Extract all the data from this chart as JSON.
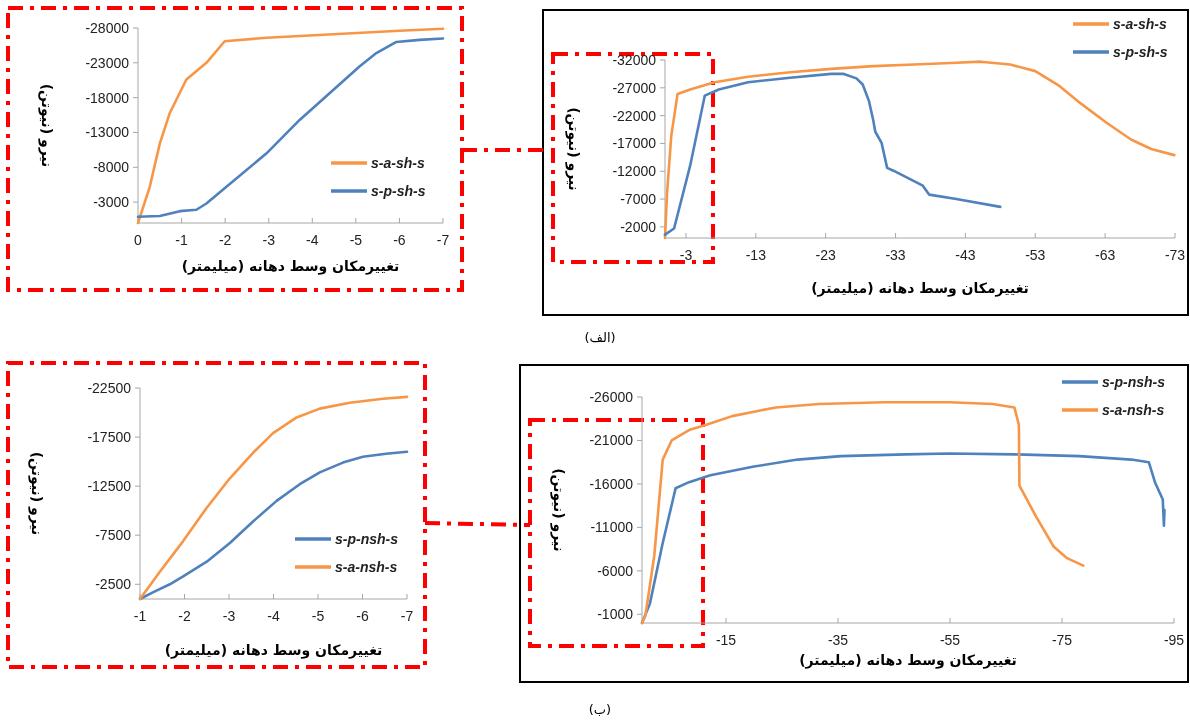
{
  "chart_data": [
    {
      "type": "line",
      "xlabel": "تغییرمکان وسط دهانه (میلیمتر)",
      "ylabel": "نیرو (نیوتن)",
      "xlim": [
        0,
        -7
      ],
      "xticks": [
        0,
        -1,
        -2,
        -3,
        -4,
        -5,
        -6,
        -7
      ],
      "ylim": [
        0,
        -28000
      ],
      "yticks": [
        -3000,
        -8000,
        -13000,
        -18000,
        -23000,
        -28000
      ],
      "legend": "bottom right",
      "marker": "none",
      "line_style": "solid",
      "series": [
        {
          "name": "s-a-sh-s",
          "color": "#f79646",
          "x": [
            0,
            -0.27,
            -0.5,
            -0.73,
            -1.11,
            -1.57,
            -1.99,
            -2.95,
            -4.48,
            -6.0,
            -7
          ],
          "values": [
            0,
            -5200,
            -11400,
            -15800,
            -20600,
            -23000,
            -26100,
            -26600,
            -27100,
            -27600,
            -27900
          ]
        },
        {
          "name": "s-p-sh-s",
          "color": "#4f81bd",
          "x": [
            0,
            -0.5,
            -0.96,
            -1.34,
            -1.57,
            -2.03,
            -2.95,
            -3.71,
            -4.48,
            -5.09,
            -5.47,
            -5.93,
            -6.46,
            -7
          ],
          "values": [
            -900,
            -1000,
            -1700,
            -1900,
            -2800,
            -5200,
            -10000,
            -14800,
            -19100,
            -22500,
            -24400,
            -26000,
            -26300,
            -26500
          ]
        }
      ]
    },
    {
      "type": "line",
      "xlabel": "تغییرمکان وسط دهانه (میلیمتر)",
      "ylabel": "نیرو (نیوتن)",
      "xlim": [
        0,
        -73
      ],
      "xticks": [
        -3,
        -13,
        -23,
        -33,
        -43,
        -53,
        -63,
        -73
      ],
      "ylim": [
        0,
        -32000
      ],
      "yticks": [
        -2000,
        -7000,
        -12000,
        -17000,
        -22000,
        -27000,
        -32000
      ],
      "legend": "top right",
      "marker": "none",
      "line_style": "solid",
      "annotations": [
        "(الف)"
      ],
      "series": [
        {
          "name": "s-a-sh-s",
          "color": "#f79646",
          "x": [
            0,
            -0.3,
            -0.9,
            -1.8,
            -3.6,
            -7.1,
            -11.9,
            -17.9,
            -23.8,
            -29.8,
            -35.7,
            -41.7,
            -45.2,
            -49.4,
            -53,
            -56.5,
            -59.5,
            -63.1,
            -66.7,
            -69.6,
            -72.9
          ],
          "values": [
            0,
            -8200,
            -18400,
            -25900,
            -26700,
            -28000,
            -29000,
            -29800,
            -30400,
            -30900,
            -31200,
            -31500,
            -31700,
            -31200,
            -30000,
            -27300,
            -24200,
            -20800,
            -17700,
            -16000,
            -14900
          ]
        },
        {
          "name": "s-p-sh-s",
          "color": "#4f81bd",
          "x": [
            0,
            -1.3,
            -3.6,
            -5.7,
            -7.7,
            -11.9,
            -17.9,
            -23.8,
            -25.6,
            -27.4,
            -28.3,
            -29.2,
            -29.8,
            -30.1,
            -31,
            -31.8,
            -32.7,
            -36.9,
            -37.8,
            -41.7,
            -48
          ],
          "values": [
            -600,
            -1700,
            -13000,
            -25600,
            -26700,
            -28000,
            -28800,
            -29500,
            -29500,
            -28700,
            -27600,
            -24600,
            -21200,
            -19100,
            -17100,
            -12600,
            -12100,
            -9400,
            -7800,
            -7000,
            -5600
          ]
        }
      ]
    },
    {
      "type": "line",
      "xlabel": "تغییرمکان وسط دهانه (میلیمتر)",
      "ylabel": "نیرو (نیوتن)",
      "xlim": [
        -1,
        -7
      ],
      "xticks": [
        -1,
        -2,
        -3,
        -4,
        -5,
        -6,
        -7
      ],
      "ylim": [
        -1000,
        -22500
      ],
      "yticks": [
        -2500,
        -7500,
        -12500,
        -17500,
        -22500
      ],
      "legend": "bottom right",
      "marker": "none",
      "line_style": "solid",
      "series": [
        {
          "name": "s-p-nsh-s",
          "color": "#4f81bd",
          "x": [
            -1,
            -1.3,
            -1.67,
            -1.97,
            -2.5,
            -3.02,
            -3.54,
            -4.07,
            -4.59,
            -5.04,
            -5.56,
            -6.01,
            -6.53,
            -7
          ],
          "values": [
            -1000,
            -1700,
            -2500,
            -3300,
            -4800,
            -6700,
            -8900,
            -11000,
            -12700,
            -13900,
            -14900,
            -15500,
            -15800,
            -16000
          ]
        },
        {
          "name": "s-a-nsh-s",
          "color": "#f79646",
          "x": [
            -1,
            -1.45,
            -1.97,
            -2.5,
            -3.02,
            -3.54,
            -3.99,
            -4.52,
            -5.04,
            -5.71,
            -6.46,
            -7
          ],
          "values": [
            -1000,
            -3800,
            -6900,
            -10300,
            -13300,
            -15900,
            -17900,
            -19500,
            -20400,
            -21000,
            -21400,
            -21600
          ]
        }
      ]
    },
    {
      "type": "line",
      "xlabel": "تغییرمکان وسط دهانه (میلیمتر)",
      "ylabel": "نیرو (نیوتن)",
      "xlim": [
        0,
        -95
      ],
      "xticks": [
        -15,
        -35,
        -55,
        -75,
        -95
      ],
      "ylim": [
        0,
        -26000
      ],
      "yticks": [
        -1000,
        -6000,
        -11000,
        -16000,
        -21000,
        -26000
      ],
      "legend": "top right",
      "marker": "none",
      "line_style": "solid",
      "annotations": [
        "(ب)"
      ],
      "series": [
        {
          "name": "s-p-nsh-s",
          "color": "#4f81bd",
          "x": [
            0,
            -1.4,
            -3.7,
            -6,
            -8.4,
            -12.2,
            -20,
            -27.8,
            -35.5,
            -47.1,
            -54.9,
            -66.5,
            -78.1,
            -87.4,
            -90.5,
            -91.6,
            -93,
            -93.2,
            -93.3
          ],
          "values": [
            0,
            -2200,
            -9200,
            -15500,
            -16200,
            -17000,
            -18000,
            -18800,
            -19200,
            -19400,
            -19500,
            -19400,
            -19200,
            -18800,
            -18500,
            -16200,
            -14200,
            -11200,
            -13000
          ]
        },
        {
          "name": "s-a-nsh-s",
          "color": "#f79646",
          "x": [
            0,
            -0.6,
            -2.2,
            -3.7,
            -5.3,
            -8.4,
            -11.5,
            -16.1,
            -23.9,
            -31.6,
            -43.3,
            -54.9,
            -62.6,
            -66.5,
            -67.3,
            -67.4,
            -70.4,
            -73.5,
            -75.8,
            -78.8
          ],
          "values": [
            0,
            -800,
            -7800,
            -18800,
            -21000,
            -22200,
            -22800,
            -23800,
            -24800,
            -25200,
            -25400,
            -25400,
            -25200,
            -24800,
            -22800,
            -15800,
            -12200,
            -8800,
            -7500,
            -6600
          ]
        }
      ]
    }
  ]
}
